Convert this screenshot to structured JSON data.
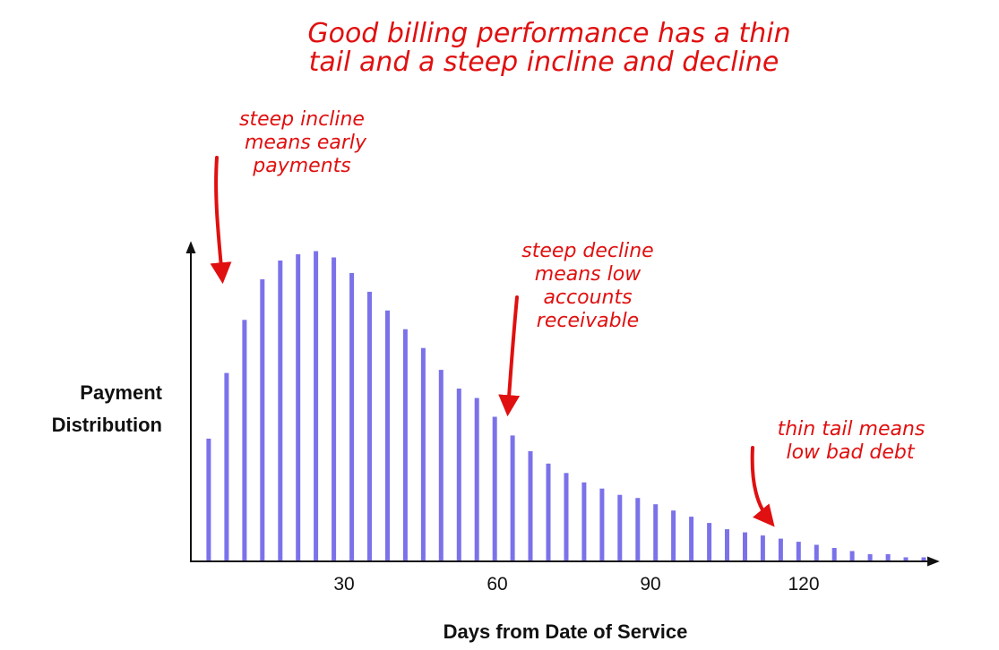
{
  "chart_data": {
    "type": "bar",
    "title": [
      "Good billing performance has a thin",
      "tail and a steep incline and decline"
    ],
    "xlabel": "Days from Date of Service",
    "ylabel": [
      "Payment",
      "Distribution"
    ],
    "x_ticks": [
      30,
      60,
      90,
      120
    ],
    "x_range": [
      0,
      147
    ],
    "ylim": [
      0,
      100
    ],
    "grid": false,
    "legend": "none",
    "bar_color": "#7b72ea",
    "annotation_color": "#e01010",
    "x": [
      3.5,
      7,
      10.5,
      14,
      17.5,
      21,
      24.5,
      28,
      31.5,
      35,
      38.5,
      42,
      45.5,
      49,
      52.5,
      56,
      59.5,
      63,
      66.5,
      70,
      73.5,
      77,
      80.5,
      84,
      87.5,
      91,
      94.5,
      98,
      101.5,
      105,
      108.5,
      112,
      115.5,
      119,
      122.5,
      126,
      129.5,
      133,
      136.5,
      140,
      143.5
    ],
    "values": [
      39,
      60,
      77,
      90,
      96,
      98,
      99,
      97,
      92,
      86,
      80,
      74,
      68,
      61,
      55,
      52,
      46,
      40,
      35,
      31,
      28,
      25,
      23,
      21,
      20,
      18,
      16,
      14,
      12,
      10,
      9,
      8,
      7,
      6,
      5,
      4,
      3,
      2,
      2,
      1,
      1
    ],
    "annotations": [
      {
        "lines": [
          "steep incline",
          "means early",
          "payments"
        ],
        "points_to_x": 7
      },
      {
        "lines": [
          "steep decline",
          "means low",
          "accounts",
          "receivable"
        ],
        "points_to_x": 59.5
      },
      {
        "lines": [
          "thin tail means",
          "low bad debt"
        ],
        "points_to_x": 115
      }
    ]
  }
}
